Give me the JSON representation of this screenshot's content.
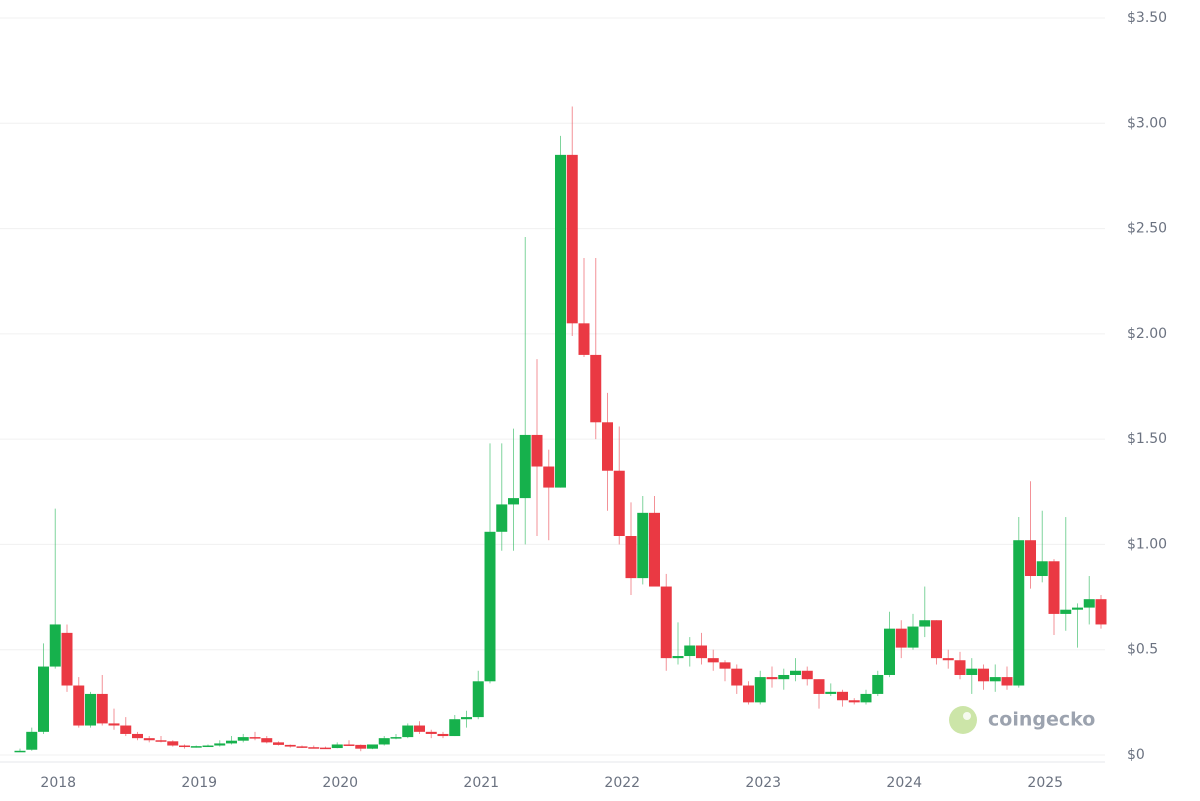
{
  "chart_data": {
    "type": "candlestick",
    "watermark": "coingecko",
    "categories": [
      null,
      null,
      null,
      "2018",
      null,
      null,
      null,
      null,
      null,
      null,
      null,
      null,
      null,
      null,
      null,
      "2019",
      null,
      null,
      null,
      null,
      null,
      null,
      null,
      null,
      null,
      null,
      null,
      "2020",
      null,
      null,
      null,
      null,
      null,
      null,
      null,
      null,
      null,
      null,
      null,
      "2021",
      null,
      null,
      null,
      null,
      null,
      null,
      null,
      null,
      null,
      null,
      null,
      "2022",
      null,
      null,
      null,
      null,
      null,
      null,
      null,
      null,
      null,
      null,
      null,
      "2023",
      null,
      null,
      null,
      null,
      null,
      null,
      null,
      null,
      null,
      null,
      null,
      "2024",
      null,
      null,
      null,
      null,
      null,
      null,
      null,
      null,
      null,
      null,
      null,
      "2025",
      null,
      null,
      null,
      null,
      null
    ],
    "open": [
      0.02,
      0.025,
      0.11,
      0.42,
      0.58,
      0.33,
      0.14,
      0.29,
      0.15,
      0.14,
      0.1,
      0.08,
      0.07,
      0.065,
      0.045,
      0.04,
      0.042,
      0.045,
      0.055,
      0.068,
      0.085,
      0.08,
      0.06,
      0.048,
      0.041,
      0.037,
      0.035,
      0.033,
      0.05,
      0.048,
      0.03,
      0.05,
      0.08,
      0.085,
      0.14,
      0.11,
      0.1,
      0.09,
      0.17,
      0.18,
      0.35,
      1.06,
      1.19,
      1.22,
      1.52,
      1.37,
      1.27,
      2.85,
      2.05,
      1.9,
      1.58,
      1.35,
      1.04,
      0.84,
      1.15,
      0.8,
      0.46,
      0.47,
      0.52,
      0.46,
      0.44,
      0.41,
      0.33,
      0.25,
      0.37,
      0.36,
      0.38,
      0.4,
      0.36,
      0.29,
      0.3,
      0.26,
      0.25,
      0.29,
      0.38,
      0.6,
      0.51,
      0.61,
      0.64,
      0.46,
      0.45,
      0.38,
      0.41,
      0.35,
      0.37,
      0.33,
      1.02,
      0.85,
      0.92,
      0.67,
      0.69,
      0.7,
      0.74
    ],
    "high": [
      0.03,
      0.13,
      0.53,
      1.17,
      0.62,
      0.37,
      0.3,
      0.38,
      0.22,
      0.18,
      0.11,
      0.09,
      0.09,
      0.07,
      0.05,
      0.045,
      0.05,
      0.07,
      0.09,
      0.1,
      0.11,
      0.09,
      0.065,
      0.05,
      0.045,
      0.045,
      0.04,
      0.06,
      0.07,
      0.05,
      0.05,
      0.09,
      0.1,
      0.15,
      0.16,
      0.12,
      0.11,
      0.19,
      0.21,
      0.4,
      1.48,
      1.48,
      1.55,
      2.46,
      1.88,
      1.45,
      2.94,
      3.08,
      2.36,
      2.36,
      1.72,
      1.56,
      1.2,
      1.23,
      1.23,
      0.86,
      0.63,
      0.56,
      0.58,
      0.5,
      0.45,
      0.43,
      0.35,
      0.4,
      0.42,
      0.41,
      0.46,
      0.42,
      0.36,
      0.34,
      0.31,
      0.27,
      0.31,
      0.4,
      0.68,
      0.64,
      0.67,
      0.8,
      0.64,
      0.5,
      0.49,
      0.46,
      0.43,
      0.43,
      0.42,
      1.13,
      1.3,
      1.16,
      0.93,
      1.13,
      0.72,
      0.85,
      0.76
    ],
    "low": [
      0.015,
      0.02,
      0.1,
      0.41,
      0.3,
      0.13,
      0.13,
      0.14,
      0.12,
      0.09,
      0.07,
      0.06,
      0.06,
      0.04,
      0.03,
      0.035,
      0.038,
      0.04,
      0.05,
      0.06,
      0.07,
      0.055,
      0.045,
      0.035,
      0.033,
      0.032,
      0.03,
      0.032,
      0.045,
      0.018,
      0.028,
      0.045,
      0.075,
      0.08,
      0.1,
      0.08,
      0.08,
      0.09,
      0.13,
      0.17,
      0.34,
      0.97,
      0.97,
      1.0,
      1.04,
      1.02,
      1.27,
      1.99,
      1.89,
      1.5,
      1.16,
      1.0,
      0.76,
      0.81,
      0.8,
      0.4,
      0.43,
      0.42,
      0.43,
      0.4,
      0.35,
      0.29,
      0.24,
      0.24,
      0.32,
      0.31,
      0.35,
      0.33,
      0.22,
      0.28,
      0.23,
      0.24,
      0.24,
      0.28,
      0.37,
      0.46,
      0.5,
      0.56,
      0.43,
      0.41,
      0.36,
      0.29,
      0.31,
      0.3,
      0.31,
      0.32,
      0.79,
      0.82,
      0.57,
      0.59,
      0.51,
      0.62,
      0.6
    ],
    "close": [
      0.02,
      0.11,
      0.42,
      0.62,
      0.33,
      0.14,
      0.29,
      0.15,
      0.14,
      0.1,
      0.08,
      0.07,
      0.065,
      0.045,
      0.04,
      0.042,
      0.045,
      0.055,
      0.068,
      0.085,
      0.08,
      0.06,
      0.048,
      0.04,
      0.037,
      0.035,
      0.033,
      0.05,
      0.048,
      0.03,
      0.05,
      0.08,
      0.085,
      0.14,
      0.11,
      0.1,
      0.09,
      0.17,
      0.18,
      0.35,
      1.06,
      1.19,
      1.22,
      1.52,
      1.37,
      1.27,
      2.85,
      2.05,
      1.9,
      1.58,
      1.35,
      1.04,
      0.84,
      1.15,
      0.8,
      0.46,
      0.47,
      0.52,
      0.46,
      0.44,
      0.41,
      0.33,
      0.25,
      0.37,
      0.36,
      0.38,
      0.4,
      0.36,
      0.29,
      0.3,
      0.26,
      0.25,
      0.29,
      0.38,
      0.6,
      0.51,
      0.61,
      0.64,
      0.46,
      0.45,
      0.38,
      0.41,
      0.35,
      0.37,
      0.33,
      1.02,
      0.85,
      0.92,
      0.67,
      0.69,
      0.7,
      0.74,
      0.62
    ],
    "up_color": "#16b14c",
    "down_color": "#ea3943",
    "ylim": [
      0,
      3.5
    ],
    "yticks": [
      {
        "value": 0,
        "label": "$0"
      },
      {
        "value": 0.5,
        "label": "$0.5"
      },
      {
        "value": 1,
        "label": "$1.00"
      },
      {
        "value": 1.5,
        "label": "$1.50"
      },
      {
        "value": 2,
        "label": "$2.00"
      },
      {
        "value": 2.5,
        "label": "$2.50"
      },
      {
        "value": 3,
        "label": "$3.00"
      },
      {
        "value": 3.5,
        "label": "$3.50"
      }
    ],
    "grid": true
  }
}
